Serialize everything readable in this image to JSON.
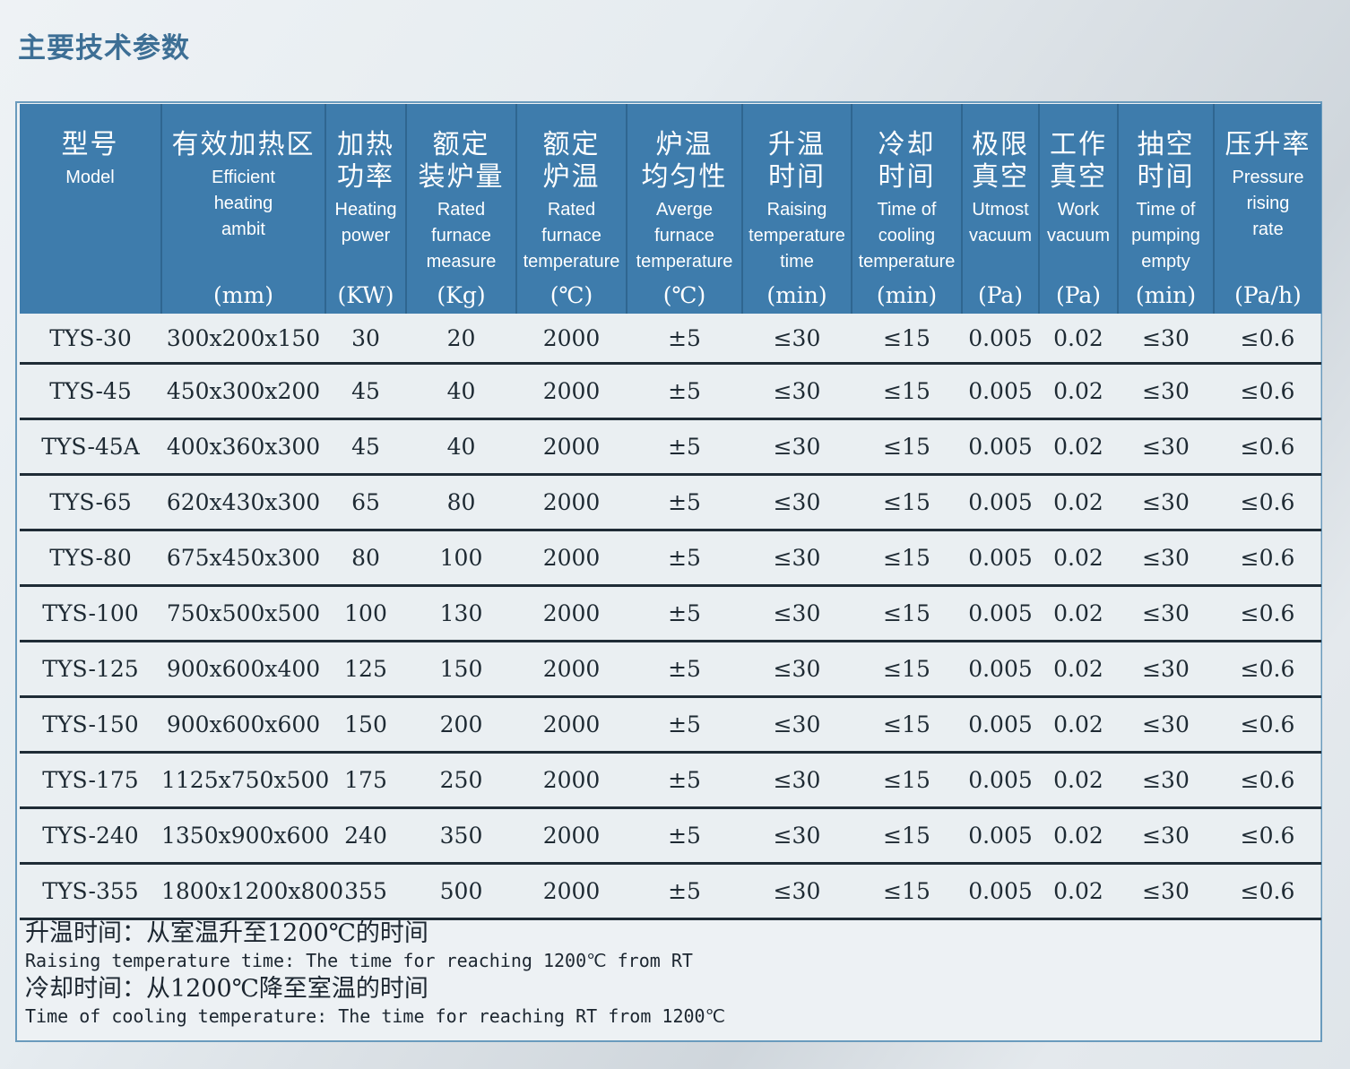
{
  "page": {
    "title": "主要技术参数"
  },
  "columns": [
    {
      "zh": "型号",
      "en": "Model",
      "unit": ""
    },
    {
      "zh": "有效加热区",
      "en": "Efficient\nheating\nambit",
      "unit": "(mm)"
    },
    {
      "zh": "加热\n功率",
      "en": "Heating\npower",
      "unit": "(KW)"
    },
    {
      "zh": "额定\n装炉量",
      "en": "Rated\nfurnace\nmeasure",
      "unit": "(Kg)"
    },
    {
      "zh": "额定\n炉温",
      "en": "Rated\nfurnace\ntemperature",
      "unit": "(℃)"
    },
    {
      "zh": "炉温\n均匀性",
      "en": "Averge\nfurnace\ntemperature",
      "unit": "(℃)"
    },
    {
      "zh": "升温\n时间",
      "en": "Raising\ntemperature\ntime",
      "unit": "(min)"
    },
    {
      "zh": "冷却\n时间",
      "en": "Time of\ncooling\ntemperature",
      "unit": "(min)"
    },
    {
      "zh": "极限\n真空",
      "en": "Utmost\nvacuum",
      "unit": "(Pa)"
    },
    {
      "zh": "工作\n真空",
      "en": "Work\nvacuum",
      "unit": "(Pa)"
    },
    {
      "zh": "抽空\n时间",
      "en": "Time of\npumping\nempty",
      "unit": "(min)"
    },
    {
      "zh": "压升率",
      "en": "Pressure\nrising\nrate",
      "unit": "(Pa/h)"
    }
  ],
  "rows": [
    [
      "TYS-30",
      "300x200x150",
      "30",
      "20",
      "2000",
      "±5",
      "≤30",
      "≤15",
      "0.005",
      "0.02",
      "≤30",
      "≤0.6"
    ],
    [
      "TYS-45",
      "450x300x200",
      "45",
      "40",
      "2000",
      "±5",
      "≤30",
      "≤15",
      "0.005",
      "0.02",
      "≤30",
      "≤0.6"
    ],
    [
      "TYS-45A",
      "400x360x300",
      "45",
      "40",
      "2000",
      "±5",
      "≤30",
      "≤15",
      "0.005",
      "0.02",
      "≤30",
      "≤0.6"
    ],
    [
      "TYS-65",
      "620x430x300",
      "65",
      "80",
      "2000",
      "±5",
      "≤30",
      "≤15",
      "0.005",
      "0.02",
      "≤30",
      "≤0.6"
    ],
    [
      "TYS-80",
      "675x450x300",
      "80",
      "100",
      "2000",
      "±5",
      "≤30",
      "≤15",
      "0.005",
      "0.02",
      "≤30",
      "≤0.6"
    ],
    [
      "TYS-100",
      "750x500x500",
      "100",
      "130",
      "2000",
      "±5",
      "≤30",
      "≤15",
      "0.005",
      "0.02",
      "≤30",
      "≤0.6"
    ],
    [
      "TYS-125",
      "900x600x400",
      "125",
      "150",
      "2000",
      "±5",
      "≤30",
      "≤15",
      "0.005",
      "0.02",
      "≤30",
      "≤0.6"
    ],
    [
      "TYS-150",
      "900x600x600",
      "150",
      "200",
      "2000",
      "±5",
      "≤30",
      "≤15",
      "0.005",
      "0.02",
      "≤30",
      "≤0.6"
    ],
    [
      "TYS-175",
      "1125x750x500",
      "175",
      "250",
      "2000",
      "±5",
      "≤30",
      "≤15",
      "0.005",
      "0.02",
      "≤30",
      "≤0.6"
    ],
    [
      "TYS-240",
      "1350x900x600",
      "240",
      "350",
      "2000",
      "±5",
      "≤30",
      "≤15",
      "0.005",
      "0.02",
      "≤30",
      "≤0.6"
    ],
    [
      "TYS-355",
      "1800x1200x800",
      "355",
      "500",
      "2000",
      "±5",
      "≤30",
      "≤15",
      "0.005",
      "0.02",
      "≤30",
      "≤0.6"
    ]
  ],
  "notes": {
    "raising_zh": "升温时间：从室温升至1200℃的时间",
    "raising_en": "Raising temperature time: The time for reaching 1200℃ from RT",
    "cooling_zh": "冷却时间：从1200℃降至室温的时间",
    "cooling_en": "Time of cooling temperature: The time for reaching RT from 1200℃"
  }
}
